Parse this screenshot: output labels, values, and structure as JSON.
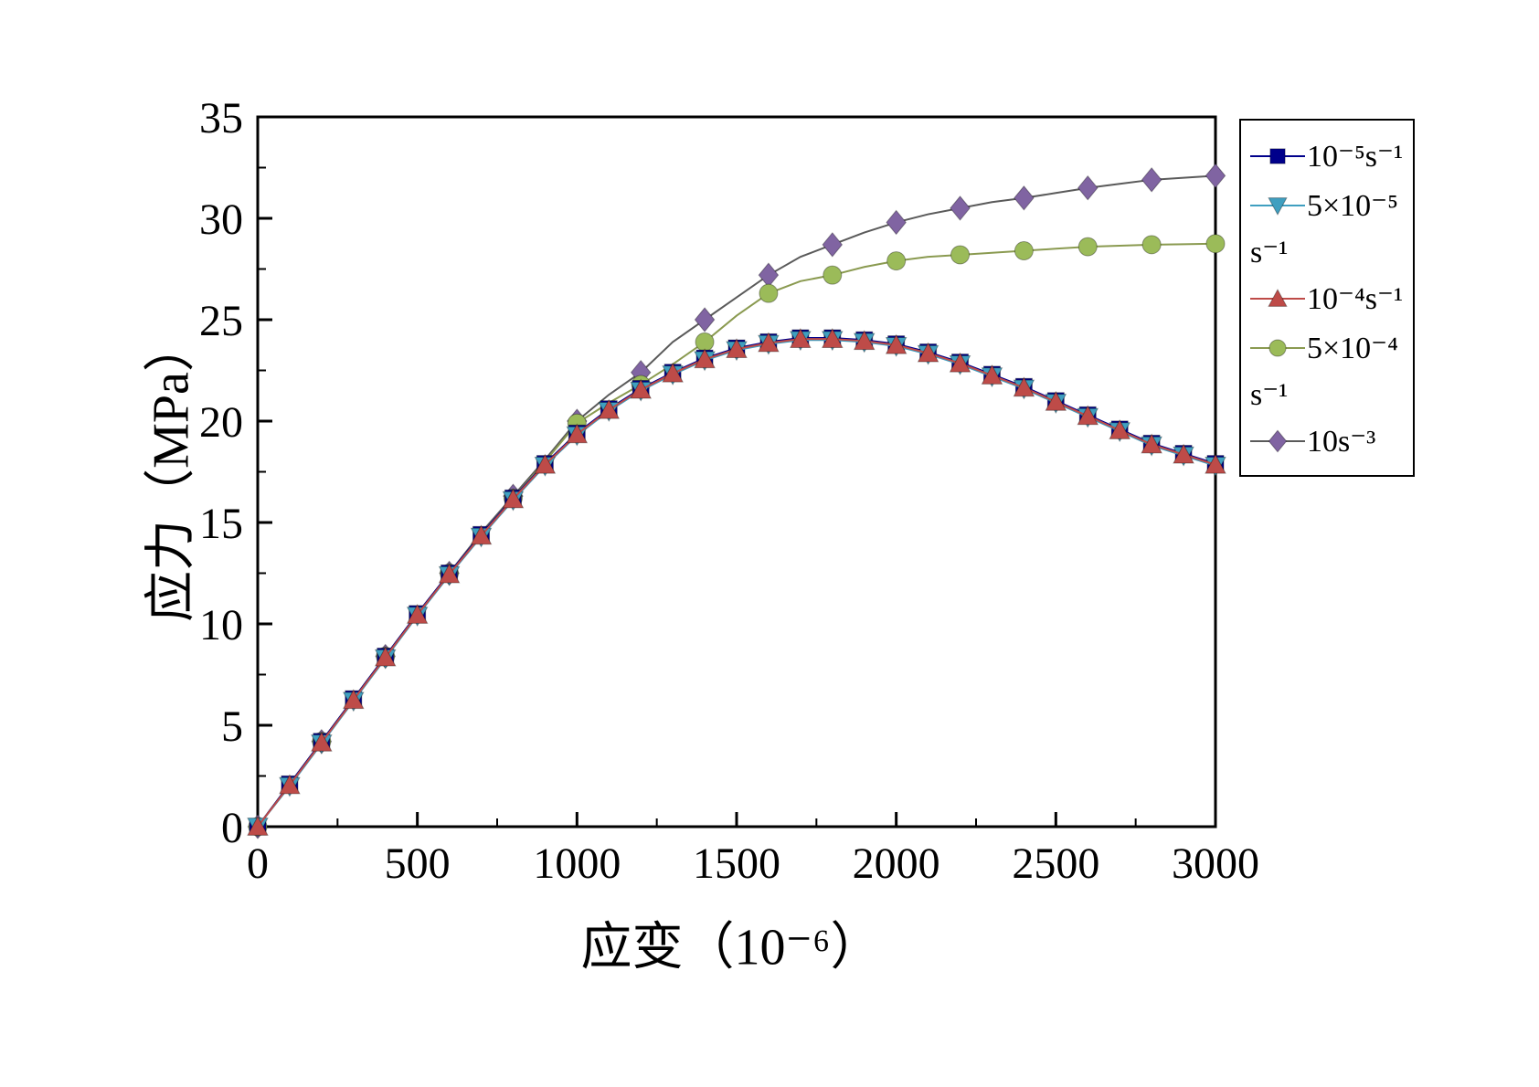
{
  "figure_title": "",
  "chart_data": {
    "type": "line",
    "title": "",
    "xlabel": "应变（10⁻⁶）",
    "ylabel": "应力（MPa）",
    "xlim": [
      0,
      3000
    ],
    "ylim": [
      0,
      35
    ],
    "xticks": [
      0,
      500,
      1000,
      1500,
      2000,
      2500,
      3000
    ],
    "xticks_minor": [
      250,
      750,
      1250,
      1750,
      2250,
      2750
    ],
    "yticks": [
      0,
      5,
      10,
      15,
      20,
      25,
      30,
      35
    ],
    "yticks_minor": [
      2.5,
      7.5,
      12.5,
      17.5,
      22.5,
      27.5,
      32.5
    ],
    "grid": false,
    "legend_position": "right-outside",
    "x": [
      0,
      100,
      200,
      300,
      400,
      500,
      600,
      700,
      800,
      900,
      1000,
      1100,
      1200,
      1300,
      1400,
      1500,
      1600,
      1700,
      1800,
      1900,
      2000,
      2100,
      2200,
      2300,
      2400,
      2500,
      2600,
      2700,
      2800,
      2900,
      3000
    ],
    "draw_order": [
      4,
      3,
      0,
      1,
      2
    ],
    "series": [
      {
        "name": "1e-5 per s",
        "legend_label": "10⁻⁵s⁻¹",
        "legend_wrap": "",
        "marker": "square",
        "marker_every": 1,
        "color": "#00008B",
        "line_color": "#00008B",
        "values": [
          0,
          2.1,
          4.2,
          6.3,
          8.4,
          10.5,
          12.5,
          14.4,
          16.2,
          17.9,
          19.4,
          20.6,
          21.6,
          22.4,
          23.1,
          23.6,
          23.9,
          24.1,
          24.1,
          24.0,
          23.8,
          23.4,
          22.9,
          22.3,
          21.7,
          21.0,
          20.3,
          19.6,
          18.9,
          18.4,
          17.9
        ]
      },
      {
        "name": "5e-5 per s",
        "legend_label": "5×10⁻⁵",
        "legend_wrap": "s⁻¹",
        "marker": "triangle-down",
        "marker_every": 1,
        "color": "#3F9FC0",
        "line_color": "#3F9FC0",
        "values": [
          0,
          2.0,
          4.1,
          6.2,
          8.3,
          10.4,
          12.4,
          14.3,
          16.1,
          17.8,
          19.3,
          20.5,
          21.5,
          22.3,
          23.0,
          23.5,
          23.8,
          24.0,
          24.0,
          23.9,
          23.7,
          23.3,
          22.8,
          22.2,
          21.6,
          20.9,
          20.2,
          19.5,
          18.8,
          18.3,
          17.8
        ]
      },
      {
        "name": "1e-4 per s",
        "legend_label": "10⁻⁴s⁻¹",
        "legend_wrap": "",
        "marker": "triangle-up",
        "marker_every": 1,
        "color": "#BE4B48",
        "line_color": "#BE4B48",
        "values": [
          0,
          2.05,
          4.15,
          6.25,
          8.35,
          10.45,
          12.45,
          14.35,
          16.15,
          17.85,
          19.35,
          20.55,
          21.55,
          22.35,
          23.05,
          23.55,
          23.85,
          24.05,
          24.05,
          23.95,
          23.75,
          23.35,
          22.85,
          22.25,
          21.65,
          20.95,
          20.25,
          19.55,
          18.85,
          18.35,
          17.85
        ]
      },
      {
        "name": "5e-4 per s",
        "legend_label": "5×10⁻⁴",
        "legend_wrap": "s⁻¹",
        "marker": "circle",
        "marker_every": 2,
        "color": "#9BBB59",
        "line_color": "#8A9A50",
        "values": [
          0,
          2.1,
          4.2,
          6.3,
          8.4,
          10.5,
          12.5,
          14.4,
          16.2,
          18.0,
          19.9,
          20.9,
          21.8,
          22.8,
          23.9,
          25.2,
          26.3,
          26.9,
          27.2,
          27.6,
          27.9,
          28.1,
          28.2,
          28.3,
          28.4,
          28.5,
          28.6,
          28.65,
          28.7,
          28.72,
          28.75
        ]
      },
      {
        "name": "10 s-3",
        "legend_label": "10s⁻³",
        "legend_wrap": "",
        "marker": "diamond",
        "marker_every": 2,
        "color": "#8064A2",
        "line_color": "#5A5A5A",
        "values": [
          0,
          2.1,
          4.2,
          6.3,
          8.4,
          10.5,
          12.5,
          14.5,
          16.3,
          18.1,
          20.0,
          21.3,
          22.4,
          23.9,
          25.0,
          26.1,
          27.2,
          28.1,
          28.7,
          29.3,
          29.8,
          30.2,
          30.5,
          30.8,
          31.0,
          31.25,
          31.5,
          31.7,
          31.9,
          32.0,
          32.1
        ]
      }
    ]
  }
}
